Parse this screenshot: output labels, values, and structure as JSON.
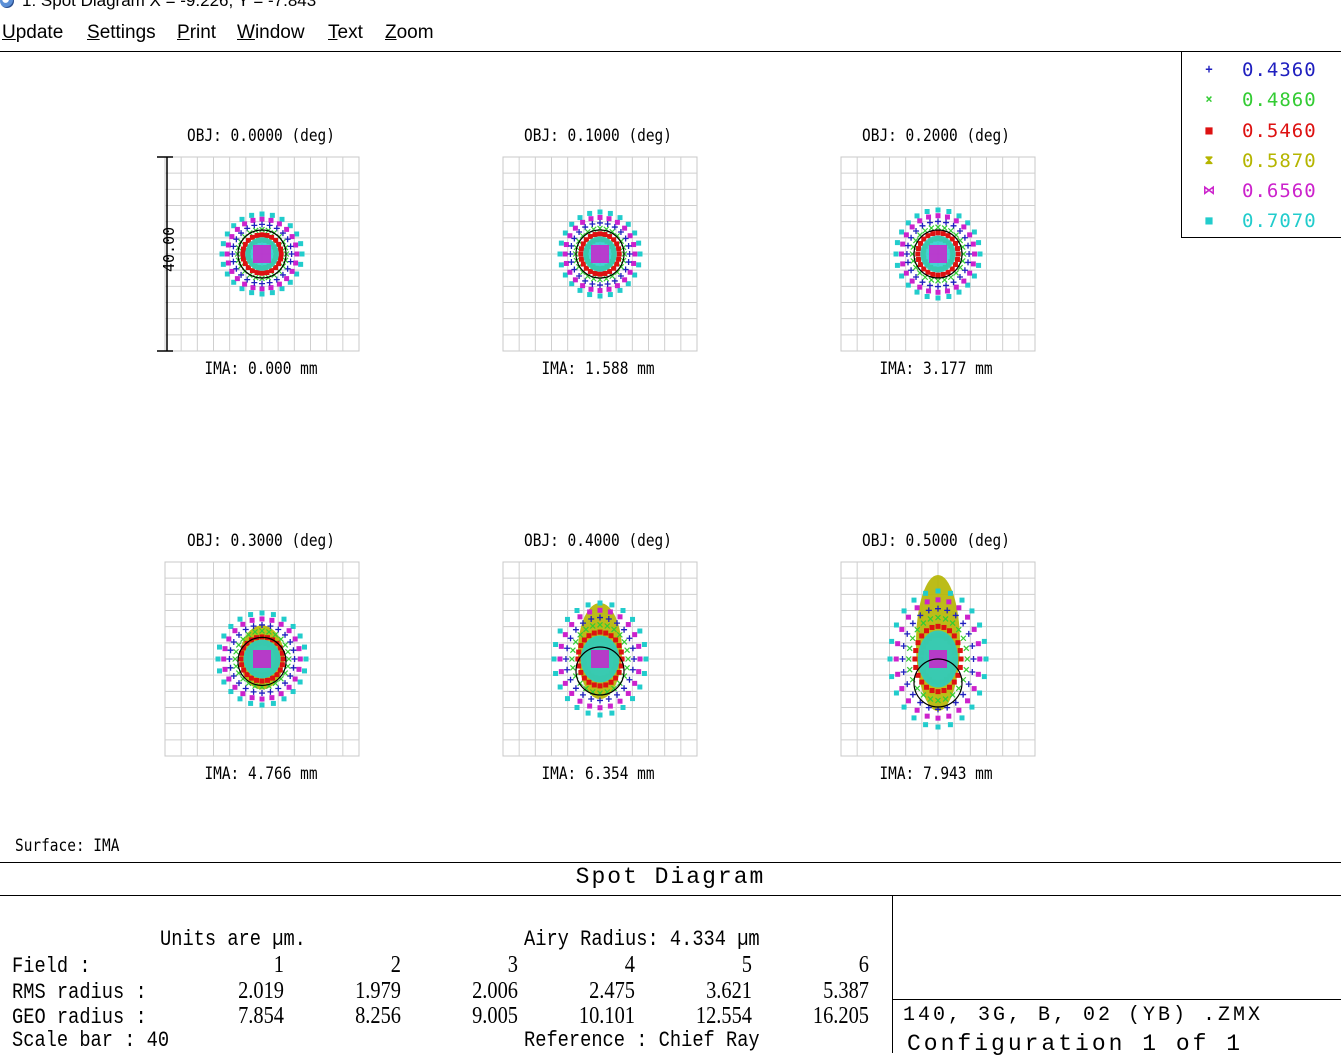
{
  "window": {
    "title": "1: Spot Diagram X = -9.226, Y = -7.843"
  },
  "menu": {
    "items": [
      {
        "ul": "U",
        "rest": "pdate"
      },
      {
        "ul": "S",
        "rest": "ettings"
      },
      {
        "ul": "P",
        "rest": "rint"
      },
      {
        "ul": "W",
        "rest": "indow"
      },
      {
        "ul": "T",
        "rest": "ext"
      },
      {
        "ul": "Z",
        "rest": "oom"
      }
    ]
  },
  "legend": {
    "entries": [
      {
        "symbol": "+",
        "label": "0.4360",
        "color": "#1f1fbf"
      },
      {
        "symbol": "×",
        "label": "0.4860",
        "color": "#33cc33"
      },
      {
        "symbol": "■",
        "label": "0.5460",
        "color": "#dd1111"
      },
      {
        "symbol": "⧗",
        "label": "0.5870",
        "color": "#b5b500"
      },
      {
        "symbol": "⋈",
        "label": "0.6560",
        "color": "#cc22cc"
      },
      {
        "symbol": "■",
        "label": "0.7070",
        "color": "#22cccc"
      }
    ]
  },
  "plots": {
    "scale_label": "40.00",
    "fields": [
      {
        "obj": "OBJ: 0.0000 (deg)",
        "ima": "IMA: 0.000 mm"
      },
      {
        "obj": "OBJ: 0.1000 (deg)",
        "ima": "IMA: 1.588 mm"
      },
      {
        "obj": "OBJ: 0.2000 (deg)",
        "ima": "IMA: 3.177 mm"
      },
      {
        "obj": "OBJ: 0.3000 (deg)",
        "ima": "IMA: 4.766 mm"
      },
      {
        "obj": "OBJ: 0.4000 (deg)",
        "ima": "IMA: 6.354 mm"
      },
      {
        "obj": "OBJ: 0.5000 (deg)",
        "ima": "IMA: 7.943 mm"
      }
    ],
    "surface": "Surface: IMA"
  },
  "panel": {
    "title": "Spot Diagram",
    "units": "Units are µm.",
    "airy": "Airy Radius: 4.334 µm",
    "field_label": "Field      :",
    "rms_label": "RMS radius :",
    "geo_label": "GEO radius :",
    "scale_label": "Scale bar  : 40",
    "reference": "Reference   : Chief Ray",
    "field_numbers": [
      "1",
      "2",
      "3",
      "4",
      "5",
      "6"
    ],
    "rms_values": [
      "2.019",
      "1.979",
      "2.006",
      "2.475",
      "3.621",
      "5.387"
    ],
    "geo_values": [
      "7.854",
      "8.256",
      "9.005",
      "10.101",
      "12.554",
      "16.205"
    ],
    "file": "140, 3G, B, 02 (YB) .ZMX",
    "config": "Configuration 1 of 1"
  }
}
